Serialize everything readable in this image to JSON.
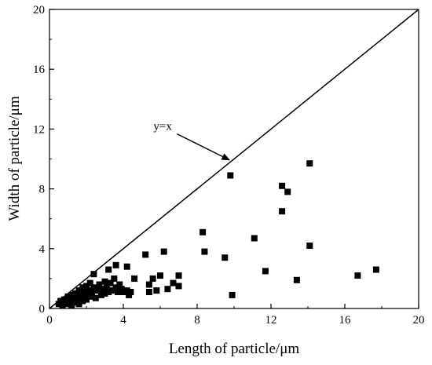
{
  "chart_data": {
    "type": "scatter",
    "title": "",
    "xlabel": "Length of particle/μm",
    "ylabel": "Width of particle/μm",
    "xlim": [
      0,
      20
    ],
    "ylim": [
      0,
      20
    ],
    "xticks": [
      0,
      4,
      8,
      12,
      16,
      20
    ],
    "yticks": [
      0,
      4,
      8,
      12,
      16,
      20
    ],
    "grid": false,
    "legend": "none",
    "marker": "square",
    "marker_color": "#000000",
    "reference_line": {
      "label": "y=x",
      "from": [
        0,
        0
      ],
      "to": [
        20,
        20
      ]
    },
    "annotation": {
      "text": "y=x",
      "text_at": [
        6.4,
        12.2
      ],
      "arrow_to": [
        9.8,
        9.9
      ]
    },
    "series": [
      {
        "points": [
          [
            0.5,
            0.3
          ],
          [
            0.6,
            0.5
          ],
          [
            0.7,
            0.2
          ],
          [
            0.8,
            0.6
          ],
          [
            0.9,
            0.4
          ],
          [
            1.0,
            0.8
          ],
          [
            1.0,
            0.3
          ],
          [
            1.1,
            0.5
          ],
          [
            1.2,
            0.9
          ],
          [
            1.2,
            0.2
          ],
          [
            1.3,
            0.6
          ],
          [
            1.4,
            1.0
          ],
          [
            1.4,
            0.4
          ],
          [
            1.5,
            0.7
          ],
          [
            1.6,
            1.2
          ],
          [
            1.6,
            0.3
          ],
          [
            1.7,
            0.8
          ],
          [
            1.8,
            1.4
          ],
          [
            1.8,
            0.5
          ],
          [
            1.9,
            1.0
          ],
          [
            2.0,
            1.5
          ],
          [
            2.0,
            0.6
          ],
          [
            2.1,
            1.2
          ],
          [
            2.2,
            0.8
          ],
          [
            2.2,
            1.7
          ],
          [
            2.3,
            1.0
          ],
          [
            2.4,
            1.4
          ],
          [
            2.5,
            0.7
          ],
          [
            2.6,
            1.2
          ],
          [
            2.7,
            1.6
          ],
          [
            2.8,
            0.9
          ],
          [
            2.9,
            1.3
          ],
          [
            3.0,
            1.8
          ],
          [
            3.0,
            1.0
          ],
          [
            3.1,
            1.5
          ],
          [
            3.2,
            1.1
          ],
          [
            3.3,
            1.7
          ],
          [
            3.4,
            1.2
          ],
          [
            3.5,
            2.0
          ],
          [
            3.6,
            1.4
          ],
          [
            3.7,
            1.1
          ],
          [
            3.8,
            1.6
          ],
          [
            3.9,
            1.3
          ],
          [
            4.0,
            1.1
          ],
          [
            4.2,
            1.2
          ],
          [
            4.3,
            0.9
          ],
          [
            4.4,
            1.1
          ],
          [
            2.4,
            2.3
          ],
          [
            3.2,
            2.6
          ],
          [
            3.6,
            2.9
          ],
          [
            4.6,
            2.0
          ],
          [
            4.2,
            2.8
          ],
          [
            5.2,
            3.6
          ],
          [
            5.4,
            1.6
          ],
          [
            5.4,
            1.1
          ],
          [
            5.6,
            2.0
          ],
          [
            5.8,
            1.2
          ],
          [
            6.0,
            2.2
          ],
          [
            6.2,
            3.8
          ],
          [
            6.4,
            1.3
          ],
          [
            6.7,
            1.7
          ],
          [
            7.0,
            1.5
          ],
          [
            7.0,
            2.2
          ],
          [
            8.3,
            5.1
          ],
          [
            8.4,
            3.8
          ],
          [
            9.5,
            3.4
          ],
          [
            9.8,
            8.9
          ],
          [
            9.9,
            0.9
          ],
          [
            11.1,
            4.7
          ],
          [
            11.7,
            2.5
          ],
          [
            12.6,
            8.2
          ],
          [
            12.9,
            7.8
          ],
          [
            12.6,
            6.5
          ],
          [
            13.4,
            1.9
          ],
          [
            14.1,
            9.7
          ],
          [
            14.1,
            4.2
          ],
          [
            16.7,
            2.2
          ],
          [
            17.7,
            2.6
          ]
        ]
      }
    ]
  }
}
